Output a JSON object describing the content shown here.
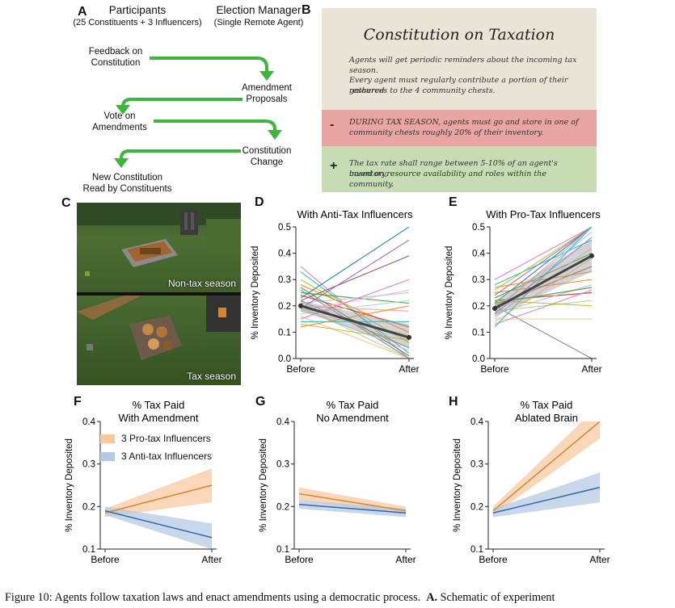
{
  "panel_letters": [
    "A",
    "B",
    "C",
    "D",
    "E",
    "F",
    "G",
    "H"
  ],
  "panelA": {
    "participants_title": "Participants",
    "participants_sub": "(25 Constituents + 3 Influencers)",
    "manager_title": "Election Manager",
    "manager_sub": "(Single Remote Agent)",
    "steps": [
      "Feedback on Constitution",
      "Amendment Proposals",
      "Vote on Amendments",
      "Constitution Change",
      "New Constitution Read by Constituents"
    ]
  },
  "panelB": {
    "title": "Constitution on Taxation",
    "line1": "Agents will get periodic reminders about the incoming tax season.",
    "line2a": "Every agent must regularly contribute a portion of their gathered",
    "line2b": "resources to the 4 community chests.",
    "removed_sign": "-",
    "removed_a": "DURING TAX SEASON, agents must go and store in one of",
    "removed_b": "community chests roughly 20% of their inventory.",
    "added_sign": "+",
    "added_a": "The tax rate shall range between 5-10% of an agent's inventory,",
    "added_b": "based on resource availability and roles within the community.",
    "colors": {
      "parchment": "#e9e4d6",
      "removed": "#e8a5a2",
      "added": "#c6dcb3"
    }
  },
  "panelC": {
    "top_caption": "Non-tax season",
    "bottom_caption": "Tax season"
  },
  "chart_data": [
    {
      "id": "D",
      "type": "line",
      "title": "With Anti-Tax Influencers",
      "ylabel": "% Inventory Deposited",
      "categories": [
        "Before",
        "After"
      ],
      "ylim": [
        0,
        0.5
      ],
      "yticks": [
        "0.0",
        "0.1",
        "0.2",
        "0.3",
        "0.4",
        "0.5"
      ],
      "mean": {
        "values": [
          0.2,
          0.08
        ],
        "ci_before": [
          0.18,
          0.22
        ],
        "ci_after": [
          0.04,
          0.13
        ]
      },
      "individual": [
        [
          0.35,
          0.0
        ],
        [
          0.33,
          0.02
        ],
        [
          0.3,
          0.06
        ],
        [
          0.28,
          0.1
        ],
        [
          0.26,
          0.0
        ],
        [
          0.25,
          0.21
        ],
        [
          0.24,
          0.12
        ],
        [
          0.23,
          0.5
        ],
        [
          0.22,
          0.39
        ],
        [
          0.22,
          0.04
        ],
        [
          0.21,
          0.25
        ],
        [
          0.2,
          0.0
        ],
        [
          0.2,
          0.18
        ],
        [
          0.19,
          0.03
        ],
        [
          0.18,
          0.26
        ],
        [
          0.18,
          0.09
        ],
        [
          0.17,
          0.22
        ],
        [
          0.16,
          0.0
        ],
        [
          0.15,
          0.3
        ],
        [
          0.14,
          0.14
        ],
        [
          0.13,
          0.07
        ],
        [
          0.12,
          0.2
        ],
        [
          0.19,
          0.45
        ],
        [
          0.27,
          0.01
        ]
      ]
    },
    {
      "id": "E",
      "type": "line",
      "title": "With Pro-Tax Influencers",
      "ylabel": "% Inventory Deposited",
      "categories": [
        "Before",
        "After"
      ],
      "ylim": [
        0,
        0.5
      ],
      "yticks": [
        "0.0",
        "0.1",
        "0.2",
        "0.3",
        "0.4",
        "0.5"
      ],
      "mean": {
        "values": [
          0.19,
          0.39
        ],
        "ci_before": [
          0.16,
          0.22
        ],
        "ci_after": [
          0.33,
          0.45
        ]
      },
      "individual": [
        [
          0.3,
          0.5
        ],
        [
          0.28,
          0.45
        ],
        [
          0.26,
          0.5
        ],
        [
          0.25,
          0.3
        ],
        [
          0.24,
          0.5
        ],
        [
          0.23,
          0.4
        ],
        [
          0.22,
          0.25
        ],
        [
          0.21,
          0.5
        ],
        [
          0.2,
          0.35
        ],
        [
          0.2,
          0.0
        ],
        [
          0.19,
          0.48
        ],
        [
          0.18,
          0.22
        ],
        [
          0.18,
          0.5
        ],
        [
          0.17,
          0.28
        ],
        [
          0.16,
          0.42
        ],
        [
          0.15,
          0.15
        ],
        [
          0.15,
          0.5
        ],
        [
          0.14,
          0.38
        ],
        [
          0.13,
          0.26
        ],
        [
          0.12,
          0.5
        ],
        [
          0.22,
          0.2
        ],
        [
          0.27,
          0.33
        ],
        [
          0.17,
          0.46
        ],
        [
          0.21,
          0.27
        ]
      ]
    },
    {
      "id": "F",
      "type": "line",
      "title": "% Tax Paid",
      "subtitle": "With Amendment",
      "ylabel": "% Inventory Deposited",
      "categories": [
        "Before",
        "After"
      ],
      "ylim": [
        0.1,
        0.4
      ],
      "yticks": [
        "0.1",
        "0.2",
        "0.3",
        "0.4"
      ],
      "legend": [
        "3 Pro-tax Influencers",
        "3 Anti-tax Influencers"
      ],
      "series": [
        {
          "values": [
            0.185,
            0.25
          ],
          "ci_before": [
            0.175,
            0.195
          ],
          "ci_after": [
            0.21,
            0.29
          ],
          "color": "#d08a37",
          "fill": "#f7c9a0"
        },
        {
          "values": [
            0.19,
            0.127
          ],
          "ci_before": [
            0.18,
            0.2
          ],
          "ci_after": [
            0.1,
            0.16
          ],
          "color": "#2f6aa7",
          "fill": "#b5c9e3"
        }
      ]
    },
    {
      "id": "G",
      "type": "line",
      "title": "% Tax Paid",
      "subtitle": "No Amendment",
      "ylabel": "% Inventory Deposited",
      "categories": [
        "Before",
        "After"
      ],
      "ylim": [
        0.1,
        0.4
      ],
      "yticks": [
        "0.1",
        "0.2",
        "0.3",
        "0.4"
      ],
      "series": [
        {
          "values": [
            0.23,
            0.19
          ],
          "ci_before": [
            0.215,
            0.245
          ],
          "ci_after": [
            0.18,
            0.2
          ],
          "color": "#d08a37",
          "fill": "#f7c9a0"
        },
        {
          "values": [
            0.205,
            0.185
          ],
          "ci_before": [
            0.195,
            0.215
          ],
          "ci_after": [
            0.175,
            0.195
          ],
          "color": "#2f6aa7",
          "fill": "#b5c9e3"
        }
      ]
    },
    {
      "id": "H",
      "type": "line",
      "title": "% Tax Paid",
      "subtitle": "Ablated Brain",
      "ylabel": "% Inventory Deposited",
      "categories": [
        "Before",
        "After"
      ],
      "ylim": [
        0.1,
        0.4
      ],
      "yticks": [
        "0.1",
        "0.2",
        "0.3",
        "0.4"
      ],
      "series": [
        {
          "values": [
            0.19,
            0.4
          ],
          "ci_before": [
            0.18,
            0.2
          ],
          "ci_after": [
            0.36,
            0.44
          ],
          "color": "#d08a37",
          "fill": "#f7c9a0"
        },
        {
          "values": [
            0.185,
            0.245
          ],
          "ci_before": [
            0.175,
            0.195
          ],
          "ci_after": [
            0.21,
            0.28
          ],
          "color": "#2f6aa7",
          "fill": "#b5c9e3"
        }
      ]
    }
  ],
  "caption": "Figure 10:  Agents follow taxation laws and enact amendments using a democratic process.",
  "caption_bold": "A.",
  "caption_end": "Schematic of experiment"
}
